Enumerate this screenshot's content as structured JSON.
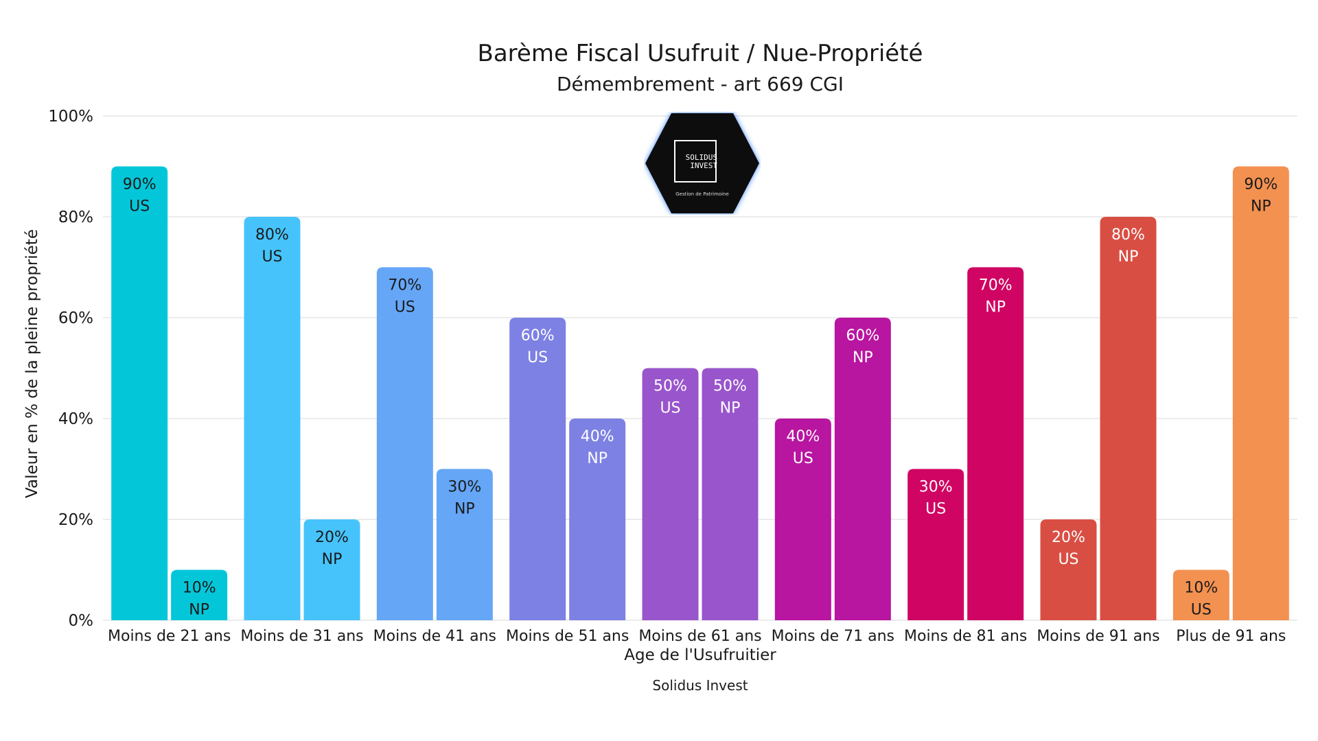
{
  "chart_data": {
    "type": "bar",
    "title": "Barème Fiscal Usufruit / Nue-Propriété",
    "subtitle": "Démembrement - art 669 CGI",
    "xlabel": "Age de l'Usufruitier",
    "ylabel": "Valeur en % de la pleine propriété",
    "footer": "Solidus Invest",
    "ylim": [
      0,
      100
    ],
    "yticks": [
      "0%",
      "20%",
      "40%",
      "60%",
      "80%",
      "100%"
    ],
    "grid": true,
    "categories": [
      "Moins de 21 ans",
      "Moins de 31 ans",
      "Moins de 41 ans",
      "Moins de 51 ans",
      "Moins de 61 ans",
      "Moins de 71 ans",
      "Moins de 81 ans",
      "Moins de 91 ans",
      "Plus de 91 ans"
    ],
    "series": [
      {
        "name": "US",
        "values": [
          90,
          80,
          70,
          60,
          50,
          40,
          30,
          20,
          10
        ]
      },
      {
        "name": "NP",
        "values": [
          10,
          20,
          30,
          40,
          50,
          60,
          70,
          80,
          90
        ]
      }
    ],
    "colors": [
      [
        "#03c7d9",
        "#03c7d9"
      ],
      [
        "#46c3fb",
        "#46c3fb"
      ],
      [
        "#65a6f7",
        "#65a6f7"
      ],
      [
        "#7d81e3",
        "#7d81e3"
      ],
      [
        "#9955cc",
        "#9955cc"
      ],
      [
        "#b815a0",
        "#b815a0"
      ],
      [
        "#d00462",
        "#d00462"
      ],
      [
        "#d94e43",
        "#d94e43"
      ],
      [
        "#f39151",
        "#f39151"
      ]
    ],
    "label_colors": [
      [
        "#1a1a1a",
        "#1a1a1a"
      ],
      [
        "#1a1a1a",
        "#1a1a1a"
      ],
      [
        "#1a1a1a",
        "#1a1a1a"
      ],
      [
        "#ffffff",
        "#ffffff"
      ],
      [
        "#ffffff",
        "#ffffff"
      ],
      [
        "#ffffff",
        "#ffffff"
      ],
      [
        "#ffffff",
        "#ffffff"
      ],
      [
        "#ffffff",
        "#ffffff"
      ],
      [
        "#1a1a1a",
        "#1a1a1a"
      ]
    ]
  },
  "logo": {
    "name": "SOLIDUS INVEST",
    "line1": "SOLIDUS",
    "line2": "INVEST",
    "tagline": "Gestion de Patrimoine"
  }
}
